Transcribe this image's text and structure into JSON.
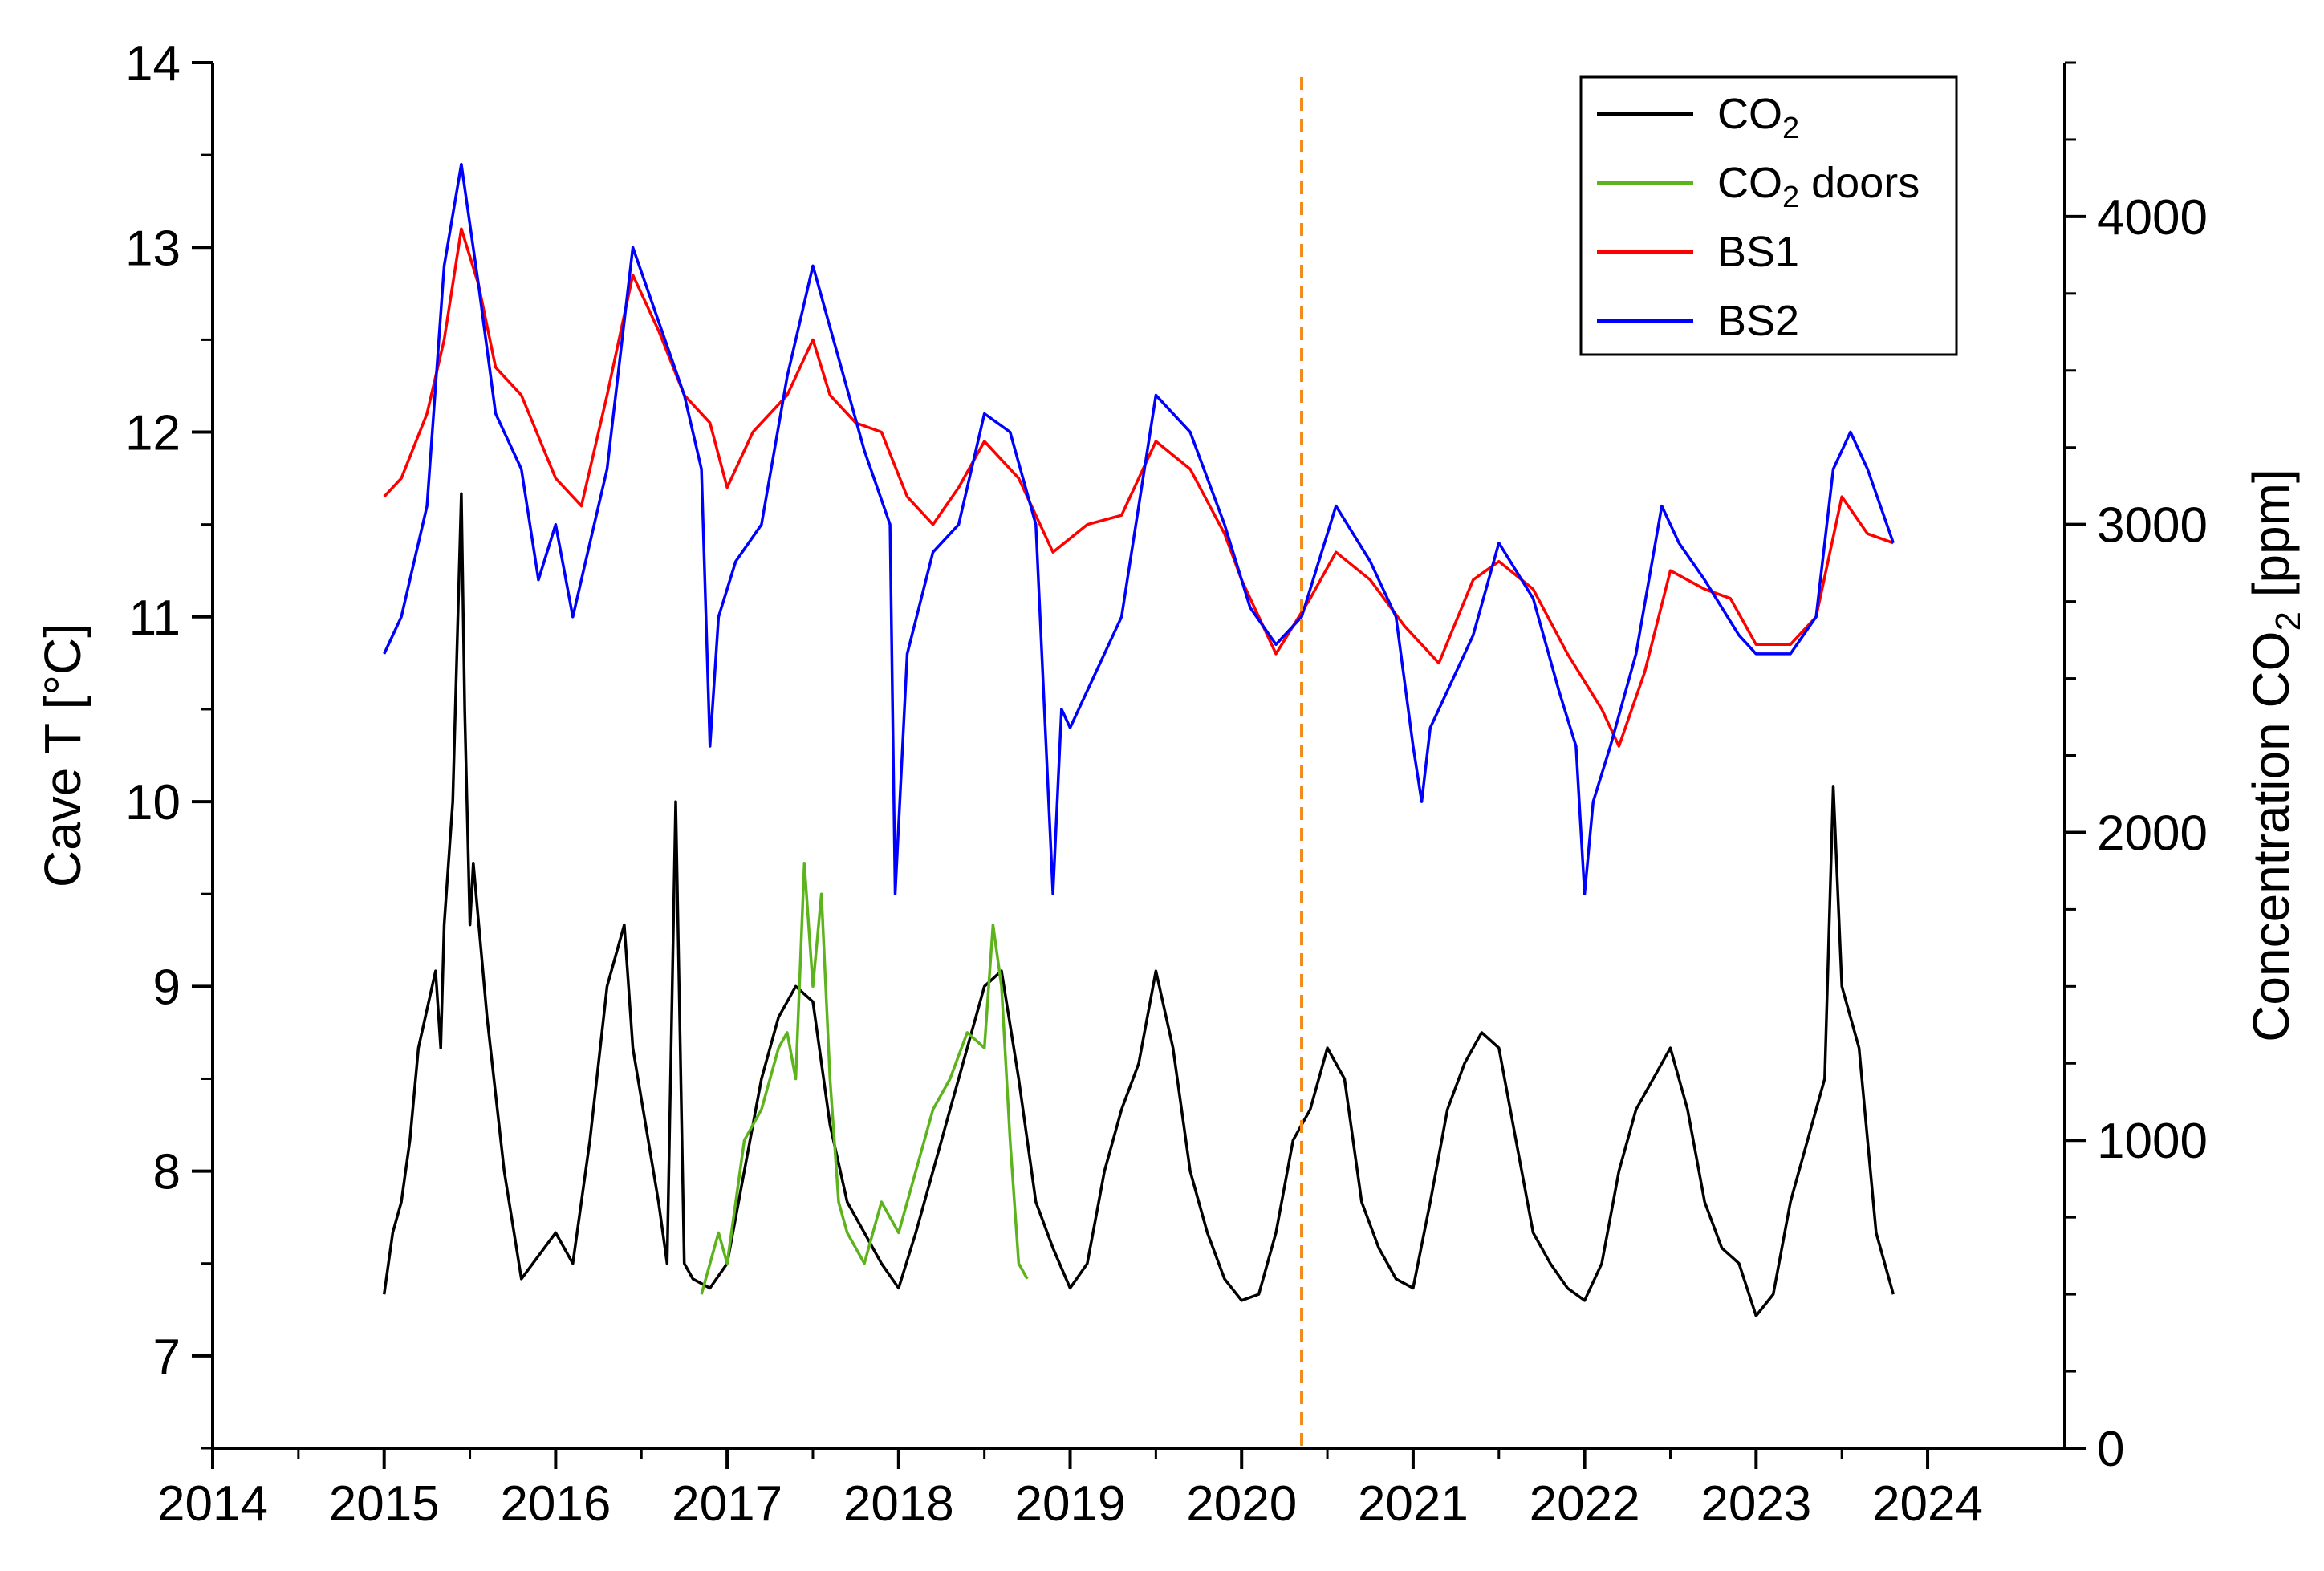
{
  "chart_data": {
    "type": "line",
    "title": "",
    "xlabel": "",
    "x_ticks": [
      "2014",
      "2015",
      "2016",
      "2017",
      "2018",
      "2019",
      "2020",
      "2021",
      "2022",
      "2023",
      "2024"
    ],
    "xlim": [
      2014,
      2024.8
    ],
    "y_left": {
      "label": "Cave T [°C]",
      "ylim": [
        6.5,
        14
      ],
      "ticks": [
        "7",
        "8",
        "9",
        "10",
        "11",
        "12",
        "13",
        "14"
      ]
    },
    "y_right": {
      "label_prefix": "Concentration CO",
      "label_sub": "2",
      "label_suffix": " [ppm]",
      "ylim": [
        0,
        4500
      ],
      "ticks": [
        "0",
        "1000",
        "2000",
        "3000",
        "4000"
      ]
    },
    "marker_line": {
      "x": 2020.35,
      "color": "#f28a1c",
      "style": "dashed"
    },
    "legend": {
      "position": "top-right",
      "entries": [
        {
          "prefix": "CO",
          "sub": "2",
          "suffix": "",
          "color": "#000000"
        },
        {
          "prefix": "CO",
          "sub": "2",
          "suffix": " doors",
          "color": "#5db31c"
        },
        {
          "prefix": "BS1",
          "sub": "",
          "suffix": "",
          "color": "#ff0000"
        },
        {
          "prefix": "BS2",
          "sub": "",
          "suffix": "",
          "color": "#0000ff"
        }
      ]
    },
    "series": [
      {
        "name": "BS1",
        "axis": "left",
        "color": "#ff0000",
        "x": [
          2015.0,
          2015.1,
          2015.25,
          2015.35,
          2015.45,
          2015.55,
          2015.65,
          2015.8,
          2016.0,
          2016.15,
          2016.3,
          2016.45,
          2016.6,
          2016.75,
          2016.9,
          2017.0,
          2017.15,
          2017.35,
          2017.5,
          2017.6,
          2017.75,
          2017.9,
          2018.05,
          2018.2,
          2018.35,
          2018.5,
          2018.7,
          2018.9,
          2019.1,
          2019.3,
          2019.5,
          2019.7,
          2019.9,
          2020.0,
          2020.2,
          2020.4,
          2020.55,
          2020.75,
          2020.95,
          2021.15,
          2021.35,
          2021.5,
          2021.7,
          2021.9,
          2022.1,
          2022.2,
          2022.35,
          2022.5,
          2022.7,
          2022.85,
          2023.0,
          2023.2,
          2023.35,
          2023.5,
          2023.65,
          2023.8
        ],
        "values": [
          11.65,
          11.75,
          12.1,
          12.5,
          13.1,
          12.8,
          12.35,
          12.2,
          11.75,
          11.6,
          12.2,
          12.85,
          12.55,
          12.2,
          12.05,
          11.7,
          12.0,
          12.2,
          12.5,
          12.2,
          12.05,
          12.0,
          11.65,
          11.5,
          11.7,
          11.95,
          11.75,
          11.35,
          11.5,
          11.55,
          11.95,
          11.8,
          11.45,
          11.2,
          10.8,
          11.1,
          11.35,
          11.2,
          10.95,
          10.75,
          11.2,
          11.3,
          11.15,
          10.8,
          10.5,
          10.3,
          10.7,
          11.25,
          11.15,
          11.1,
          10.85,
          10.85,
          11.0,
          11.65,
          11.45,
          11.4
        ]
      },
      {
        "name": "BS2",
        "axis": "left",
        "color": "#0000ff",
        "x": [
          2015.0,
          2015.1,
          2015.25,
          2015.35,
          2015.45,
          2015.55,
          2015.65,
          2015.8,
          2015.9,
          2016.0,
          2016.1,
          2016.2,
          2016.3,
          2016.45,
          2016.6,
          2016.75,
          2016.85,
          2016.9,
          2016.95,
          2017.05,
          2017.2,
          2017.35,
          2017.5,
          2017.65,
          2017.8,
          2017.95,
          2017.98,
          2018.05,
          2018.2,
          2018.35,
          2018.5,
          2018.65,
          2018.8,
          2018.9,
          2018.95,
          2019.0,
          2019.1,
          2019.3,
          2019.5,
          2019.7,
          2019.9,
          2020.05,
          2020.2,
          2020.35,
          2020.55,
          2020.75,
          2020.9,
          2021.0,
          2021.05,
          2021.1,
          2021.2,
          2021.35,
          2021.5,
          2021.7,
          2021.85,
          2021.95,
          2022.0,
          2022.05,
          2022.15,
          2022.3,
          2022.45,
          2022.55,
          2022.7,
          2022.9,
          2023.0,
          2023.2,
          2023.35,
          2023.45,
          2023.55,
          2023.65,
          2023.8
        ],
        "values": [
          10.8,
          11.0,
          11.6,
          12.9,
          13.45,
          12.8,
          12.1,
          11.8,
          11.2,
          11.5,
          11.0,
          11.4,
          11.8,
          13.0,
          12.6,
          12.2,
          11.8,
          10.3,
          11.0,
          11.3,
          11.5,
          12.3,
          12.9,
          12.4,
          11.9,
          11.5,
          9.5,
          10.8,
          11.35,
          11.5,
          12.1,
          12.0,
          11.5,
          9.5,
          10.5,
          10.4,
          10.6,
          11.0,
          12.2,
          12.0,
          11.5,
          11.05,
          10.85,
          11.0,
          11.6,
          11.3,
          11.0,
          10.3,
          10.0,
          10.4,
          10.6,
          10.9,
          11.4,
          11.1,
          10.6,
          10.3,
          9.5,
          10.0,
          10.3,
          10.8,
          11.6,
          11.4,
          11.2,
          10.9,
          10.8,
          10.8,
          11.0,
          11.8,
          12.0,
          11.8,
          11.4
        ]
      },
      {
        "name": "CO2",
        "axis": "right",
        "color": "#000000",
        "x": [
          2015.0,
          2015.05,
          2015.1,
          2015.15,
          2015.2,
          2015.3,
          2015.33,
          2015.35,
          2015.4,
          2015.45,
          2015.47,
          2015.5,
          2015.52,
          2015.6,
          2015.7,
          2015.8,
          2016.0,
          2016.1,
          2016.2,
          2016.3,
          2016.4,
          2016.45,
          2016.6,
          2016.65,
          2016.7,
          2016.75,
          2016.8,
          2016.9,
          2017.0,
          2017.1,
          2017.2,
          2017.3,
          2017.4,
          2017.5,
          2017.6,
          2017.7,
          2017.8,
          2017.9,
          2018.0,
          2018.1,
          2018.2,
          2018.3,
          2018.4,
          2018.5,
          2018.6,
          2018.7,
          2018.8,
          2018.9,
          2019.0,
          2019.1,
          2019.2,
          2019.3,
          2019.4,
          2019.5,
          2019.6,
          2019.7,
          2019.8,
          2019.9,
          2020.0,
          2020.1,
          2020.2,
          2020.3,
          2020.4,
          2020.5,
          2020.6,
          2020.7,
          2020.8,
          2020.9,
          2021.0,
          2021.1,
          2021.2,
          2021.3,
          2021.4,
          2021.5,
          2021.6,
          2021.7,
          2021.8,
          2021.9,
          2022.0,
          2022.1,
          2022.2,
          2022.3,
          2022.4,
          2022.5,
          2022.6,
          2022.7,
          2022.8,
          2022.9,
          2023.0,
          2023.1,
          2023.2,
          2023.3,
          2023.4,
          2023.45,
          2023.5,
          2023.6,
          2023.7,
          2023.8
        ],
        "values": [
          500,
          700,
          800,
          1000,
          1300,
          1550,
          1300,
          1700,
          2100,
          3100,
          2400,
          1700,
          1900,
          1400,
          900,
          550,
          700,
          600,
          1000,
          1500,
          1700,
          1300,
          800,
          600,
          2100,
          600,
          550,
          520,
          600,
          900,
          1200,
          1400,
          1500,
          1450,
          1050,
          800,
          700,
          600,
          520,
          700,
          900,
          1100,
          1300,
          1500,
          1550,
          1200,
          800,
          650,
          520,
          600,
          900,
          1100,
          1250,
          1550,
          1300,
          900,
          700,
          550,
          480,
          500,
          700,
          1000,
          1100,
          1300,
          1200,
          800,
          650,
          550,
          520,
          800,
          1100,
          1250,
          1350,
          1300,
          1000,
          700,
          600,
          520,
          480,
          600,
          900,
          1100,
          1200,
          1300,
          1100,
          800,
          650,
          600,
          430,
          500,
          800,
          1000,
          1200,
          2150,
          1500,
          1300,
          700,
          500
        ]
      },
      {
        "name": "CO2 doors",
        "axis": "right",
        "color": "#5db31c",
        "x": [
          2016.85,
          2016.95,
          2017.0,
          2017.1,
          2017.2,
          2017.3,
          2017.35,
          2017.4,
          2017.45,
          2017.5,
          2017.55,
          2017.6,
          2017.65,
          2017.7,
          2017.8,
          2017.9,
          2018.0,
          2018.1,
          2018.2,
          2018.3,
          2018.4,
          2018.5,
          2018.55,
          2018.6,
          2018.65,
          2018.7,
          2018.75
        ],
        "values": [
          500,
          700,
          600,
          1000,
          1100,
          1300,
          1350,
          1200,
          1900,
          1500,
          1800,
          1200,
          800,
          700,
          600,
          800,
          700,
          900,
          1100,
          1200,
          1350,
          1300,
          1700,
          1500,
          1000,
          600,
          550
        ]
      }
    ]
  }
}
